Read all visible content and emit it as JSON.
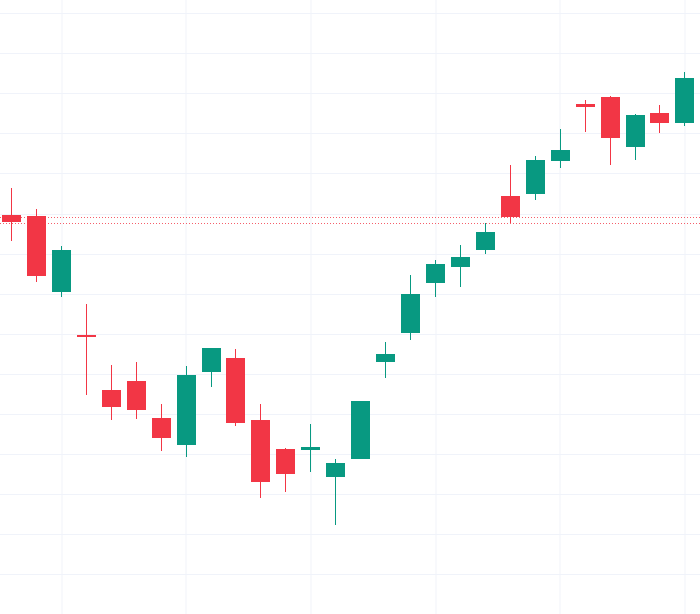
{
  "chart_data": {
    "type": "candlestick",
    "title": "",
    "xlabel": "",
    "ylabel": "",
    "grid": true,
    "ylim": [
      0,
      614
    ],
    "reference_lines": [
      {
        "value": 397.5,
        "style": "dotted"
      },
      {
        "value": 391.5,
        "style": "dotted"
      }
    ],
    "candles": [
      {
        "open": 399,
        "high": 426,
        "low": 373,
        "close": 392
      },
      {
        "open": 398,
        "high": 405,
        "low": 332,
        "close": 338
      },
      {
        "open": 322,
        "high": 368,
        "low": 317,
        "close": 364
      },
      {
        "open": 279,
        "high": 310,
        "low": 219,
        "close": 277
      },
      {
        "open": 224,
        "high": 249,
        "low": 194,
        "close": 207
      },
      {
        "open": 233,
        "high": 252,
        "low": 195,
        "close": 204
      },
      {
        "open": 196,
        "high": 210,
        "low": 163,
        "close": 176
      },
      {
        "open": 169,
        "high": 248,
        "low": 157,
        "close": 239
      },
      {
        "open": 242,
        "high": 266,
        "low": 227,
        "close": 266
      },
      {
        "open": 256,
        "high": 265,
        "low": 188,
        "close": 191
      },
      {
        "open": 194,
        "high": 210,
        "low": 116,
        "close": 132
      },
      {
        "open": 165,
        "high": 166,
        "low": 122,
        "close": 140
      },
      {
        "open": 164,
        "high": 190,
        "low": 142,
        "close": 167
      },
      {
        "open": 137,
        "high": 155,
        "low": 89,
        "close": 151
      },
      {
        "open": 155,
        "high": 213,
        "low": 155,
        "close": 213
      },
      {
        "open": 252,
        "high": 272,
        "low": 236,
        "close": 260
      },
      {
        "open": 281,
        "high": 339,
        "low": 274,
        "close": 320
      },
      {
        "open": 331,
        "high": 354,
        "low": 317,
        "close": 350
      },
      {
        "open": 347,
        "high": 369,
        "low": 327,
        "close": 357
      },
      {
        "open": 364,
        "high": 391,
        "low": 360,
        "close": 382
      },
      {
        "open": 418,
        "high": 449,
        "low": 391,
        "close": 397
      },
      {
        "open": 420,
        "high": 458,
        "low": 414,
        "close": 454
      },
      {
        "open": 453,
        "high": 485,
        "low": 446,
        "close": 464
      },
      {
        "open": 510,
        "high": 514,
        "low": 482,
        "close": 507
      },
      {
        "open": 517,
        "high": 518,
        "low": 449,
        "close": 476
      },
      {
        "open": 467,
        "high": 500,
        "low": 454,
        "close": 499
      },
      {
        "open": 501,
        "high": 509,
        "low": 481,
        "close": 491
      },
      {
        "open": 491,
        "high": 542,
        "low": 488,
        "close": 536
      }
    ]
  },
  "colors": {
    "up": "#089981",
    "down": "#f23645",
    "grid": "#f0f3fa",
    "ref_line": "#f23645",
    "background": "#ffffff"
  }
}
